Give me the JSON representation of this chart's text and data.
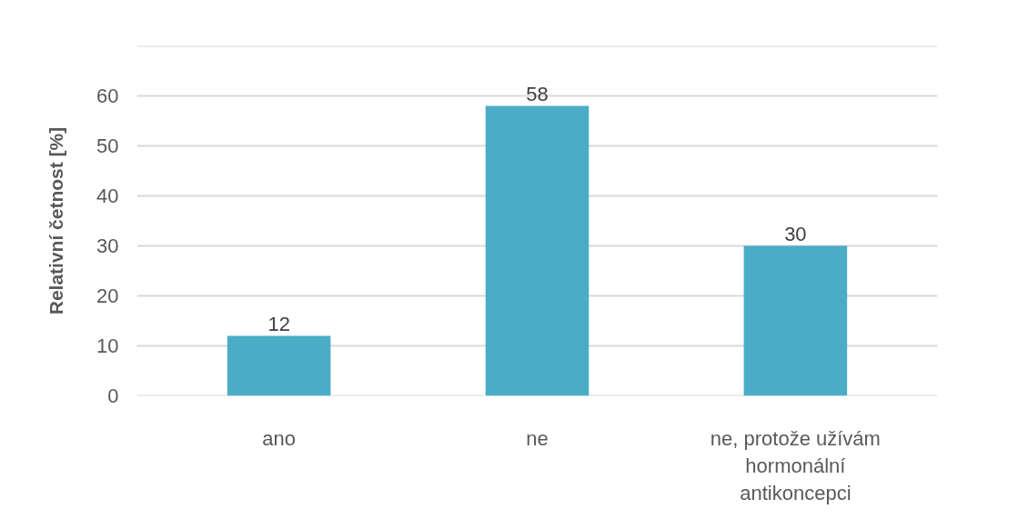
{
  "chart_data": {
    "type": "bar",
    "ylabel": "Relativní četnost [%]",
    "categories": [
      "ano",
      "ne",
      "ne, protože užívám hormonální antikoncepci"
    ],
    "values": [
      12,
      58,
      30
    ],
    "color": "#4bacc6",
    "ylim": [
      0,
      70
    ],
    "yticks": [
      0,
      10,
      20,
      30,
      40,
      50,
      60,
      {
        "value": 70,
        "label": null
      }
    ],
    "grid": "y",
    "data_labels": true
  }
}
